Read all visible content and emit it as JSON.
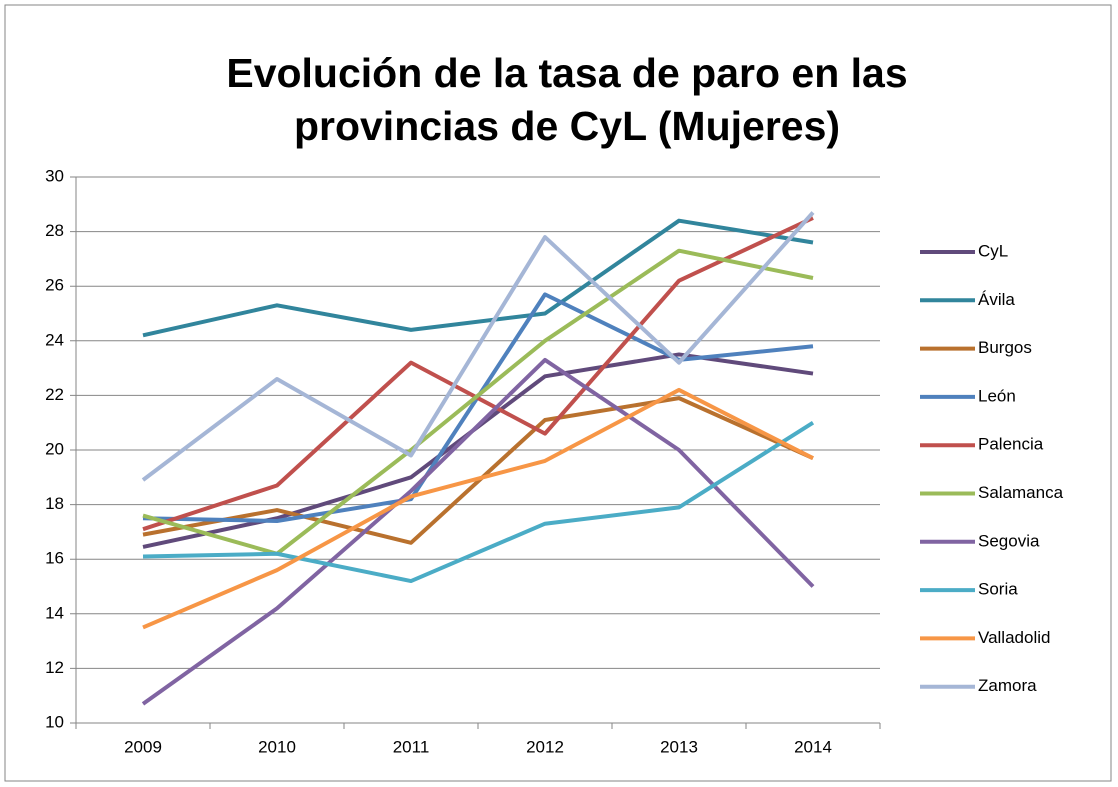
{
  "chart_data": {
    "type": "line",
    "title": [
      "Evolución de la tasa de paro en las",
      "provincias de CyL (Mujeres)"
    ],
    "categories": [
      "2009",
      "2010",
      "2011",
      "2012",
      "2013",
      "2014"
    ],
    "series": [
      {
        "name": "CyL",
        "color": "#604a7b",
        "values": [
          16.45,
          17.5,
          19.0,
          22.7,
          23.5,
          22.8
        ]
      },
      {
        "name": "Ávila",
        "color": "#31859c",
        "values": [
          24.2,
          25.3,
          24.4,
          25.0,
          28.4,
          27.6
        ]
      },
      {
        "name": "Burgos",
        "color": "#b9712e",
        "values": [
          16.9,
          17.8,
          16.6,
          21.1,
          21.9,
          19.7
        ]
      },
      {
        "name": "León",
        "color": "#4f81bd",
        "values": [
          17.5,
          17.4,
          18.2,
          25.7,
          23.3,
          23.8
        ]
      },
      {
        "name": "Palencia",
        "color": "#c0504d",
        "values": [
          17.1,
          18.7,
          23.2,
          20.6,
          26.2,
          28.5
        ]
      },
      {
        "name": "Salamanca",
        "color": "#9bbb59",
        "values": [
          17.6,
          16.2,
          20.0,
          24.0,
          27.3,
          26.3
        ]
      },
      {
        "name": "Segovia",
        "color": "#8064a2",
        "values": [
          10.7,
          14.2,
          18.5,
          23.3,
          20.0,
          15.0
        ]
      },
      {
        "name": "Soria",
        "color": "#4bacc6",
        "values": [
          16.1,
          16.2,
          15.2,
          17.3,
          17.9,
          21.0
        ]
      },
      {
        "name": "Valladolid",
        "color": "#f79646",
        "values": [
          13.5,
          15.6,
          18.3,
          19.6,
          22.2,
          19.7
        ]
      },
      {
        "name": "Zamora",
        "color": "#a5b6d6",
        "values": [
          18.9,
          22.6,
          19.8,
          27.8,
          23.2,
          28.7
        ]
      }
    ],
    "ylim": [
      10,
      30
    ],
    "yticks": [
      10,
      12,
      14,
      16,
      18,
      20,
      22,
      24,
      26,
      28,
      30
    ],
    "grid": true,
    "legend": "right"
  }
}
